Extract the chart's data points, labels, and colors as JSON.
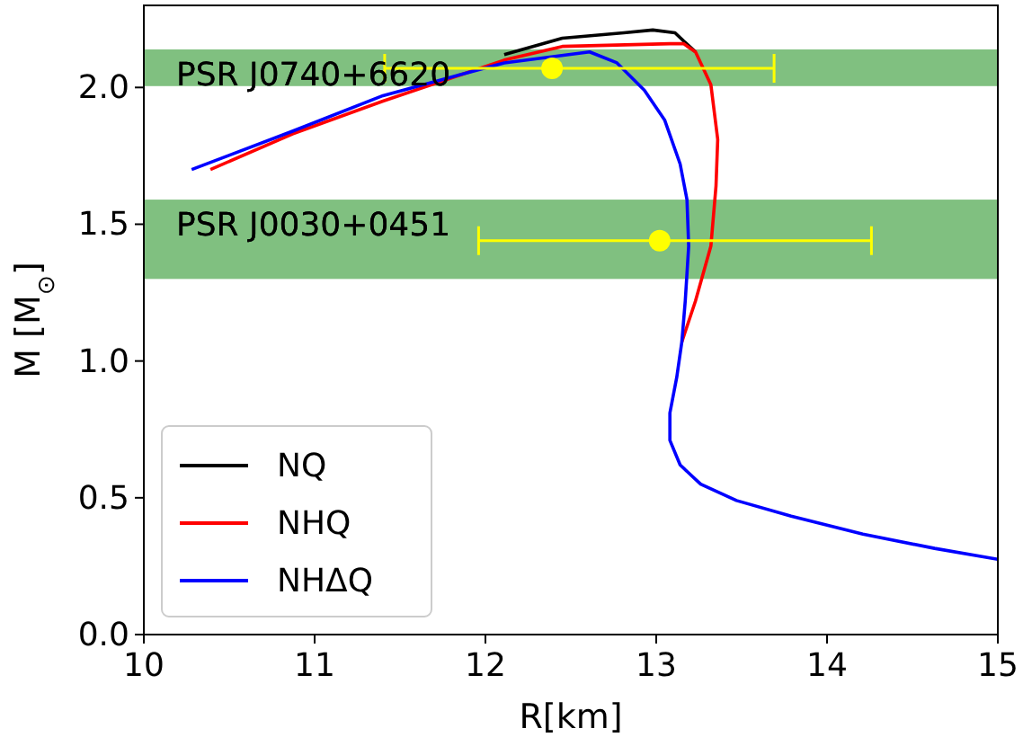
{
  "chart_data": {
    "type": "line",
    "xlabel": "R[km]",
    "ylabel": "M [M$_{⊙}$]",
    "xlim": [
      10,
      15
    ],
    "ylim": [
      0,
      2.3
    ],
    "xticks": [
      10,
      11,
      12,
      13,
      14,
      15
    ],
    "yticks": [
      {
        "value": 0,
        "label": "0.0"
      },
      {
        "value": 0.5,
        "label": "0.5"
      },
      {
        "value": 1,
        "label": "1.0"
      },
      {
        "value": 1.5,
        "label": "1.5"
      },
      {
        "value": 2,
        "label": "2.0"
      }
    ],
    "legend": "bottom left",
    "grid": false,
    "bands": [
      {
        "axis": "y",
        "from": 2.005,
        "to": 2.139,
        "label": "PSR J0740+6620",
        "color": "#80c080"
      },
      {
        "axis": "y",
        "from": 1.3,
        "to": 1.59,
        "label": "PSR J0030+0451",
        "color": "#80c080"
      }
    ],
    "series": [
      {
        "name": "NQ",
        "color": "#000000",
        "x": [
          13.23,
          13.16,
          13.11,
          12.98,
          12.81,
          12.45,
          12.11
        ],
        "values": [
          2.13,
          2.17,
          2.2,
          2.21,
          2.2,
          2.18,
          2.12
        ]
      },
      {
        "name": "NHQ",
        "color": "#ff0000",
        "x": [
          13.15,
          13.23,
          13.32,
          13.35,
          13.36,
          13.32,
          13.23,
          13.16,
          13.08,
          12.45,
          12.11,
          11.4,
          10.87,
          10.39
        ],
        "values": [
          1.07,
          1.22,
          1.42,
          1.64,
          1.81,
          2.01,
          2.13,
          2.16,
          2.16,
          2.15,
          2.1,
          1.95,
          1.83,
          1.7
        ]
      },
      {
        "name": "NHΔQ",
        "color": "#0000ff",
        "x": [
          15.0,
          14.63,
          14.21,
          13.79,
          13.47,
          13.26,
          13.14,
          13.08,
          13.08,
          13.12,
          13.15,
          13.17,
          13.19,
          13.18,
          13.14,
          13.05,
          12.93,
          12.77,
          12.61,
          12.11,
          11.4,
          10.87,
          10.28
        ],
        "values": [
          0.275,
          0.315,
          0.367,
          0.433,
          0.49,
          0.55,
          0.62,
          0.71,
          0.81,
          0.94,
          1.07,
          1.22,
          1.42,
          1.59,
          1.72,
          1.88,
          1.99,
          2.09,
          2.13,
          2.09,
          1.97,
          1.84,
          1.7
        ]
      },
      {
        "type": "scatter",
        "color": "#ffff00",
        "x": [
          12.39,
          13.02
        ],
        "values": [
          2.07,
          1.44
        ],
        "xerrors": [
          [
            11.41,
            13.69
          ],
          [
            11.96,
            14.26
          ]
        ]
      }
    ]
  }
}
